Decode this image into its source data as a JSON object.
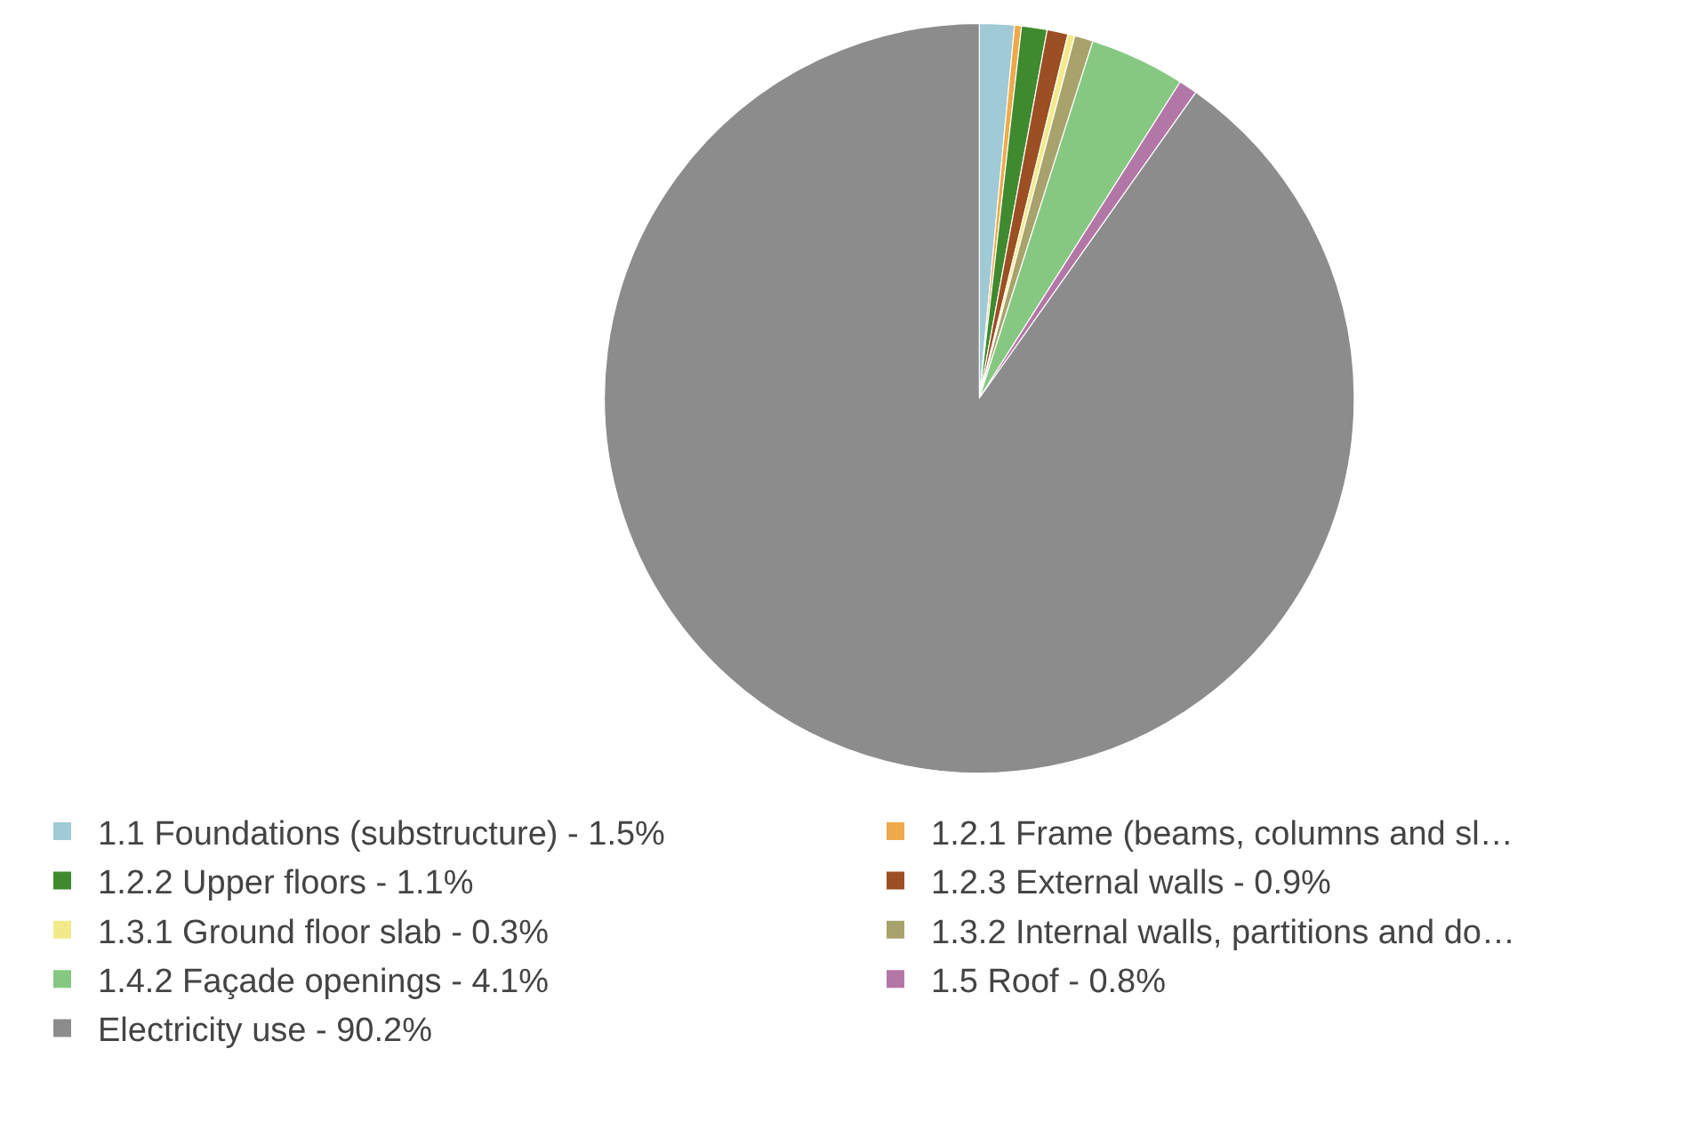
{
  "chart_data": {
    "type": "pie",
    "categories": [
      "1.1 Foundations (substructure) - 1.5%",
      "1.2.1 Frame (beams, columns and sl…",
      "1.2.2 Upper floors - 1.1%",
      "1.2.3 External walls - 0.9%",
      "1.3.1 Ground floor slab - 0.3%",
      "1.3.2 Internal walls, partitions and do…",
      "1.4.2 Façade openings - 4.1%",
      "1.5 Roof - 0.8%",
      "Electricity use - 90.2%"
    ],
    "values": [
      1.5,
      0.3,
      1.1,
      0.9,
      0.3,
      0.8,
      4.1,
      0.8,
      90.2
    ],
    "colors": [
      "#9fcad6",
      "#eeaa4a",
      "#3f8a2e",
      "#9b4f23",
      "#f2ea8a",
      "#a8a26c",
      "#86c882",
      "#b377a7",
      "#8c8c8c"
    ],
    "legend": "bottom"
  }
}
